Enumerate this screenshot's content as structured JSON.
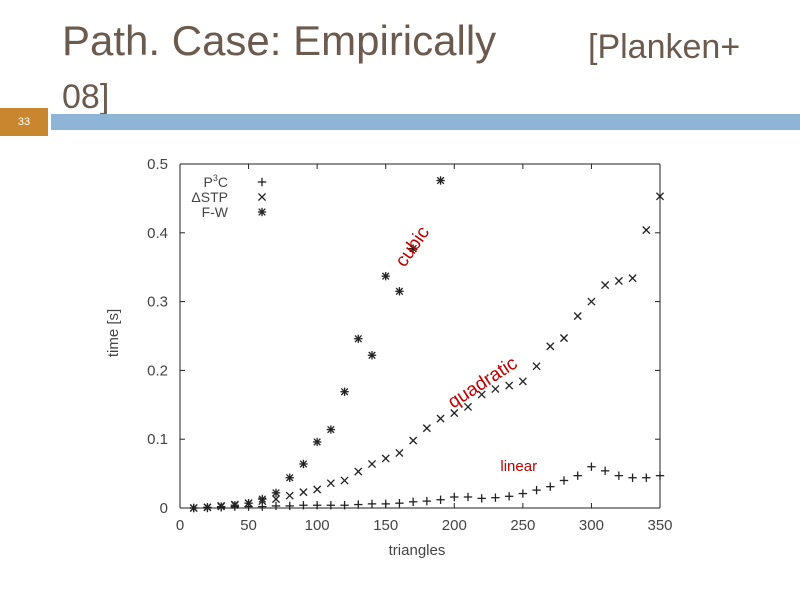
{
  "slide": {
    "title_line1": "Path. Case: Empirically",
    "title_bracket": "[Planken+",
    "title_line2": "08]",
    "number": "33"
  },
  "colors": {
    "band": "#8eb4d6",
    "badge": "#c8862f",
    "title": "#6b5b4e",
    "annotation": "#c00000"
  },
  "chart_data": {
    "type": "scatter",
    "xlabel": "triangles",
    "ylabel": "time [s]",
    "xlim": [
      0,
      350
    ],
    "ylim": [
      0,
      0.5
    ],
    "xticks": [
      0,
      50,
      100,
      150,
      200,
      250,
      300,
      350
    ],
    "yticks": [
      0,
      0.1,
      0.2,
      0.3,
      0.4,
      0.5
    ],
    "ytick_labels": [
      "0",
      "0.1",
      "0.2",
      "0.3",
      "0.4",
      "0.5"
    ],
    "legend_position": "top-left",
    "grid": false,
    "series": [
      {
        "name": "P3C",
        "label_base": "P",
        "label_sup": "3",
        "label_rest": "C",
        "marker": "plus",
        "points": [
          [
            10,
            0
          ],
          [
            20,
            0
          ],
          [
            30,
            0.001
          ],
          [
            40,
            0.002
          ],
          [
            50,
            0.002
          ],
          [
            60,
            0.002
          ],
          [
            70,
            0.003
          ],
          [
            80,
            0.003
          ],
          [
            90,
            0.004
          ],
          [
            100,
            0.004
          ],
          [
            110,
            0.004
          ],
          [
            120,
            0.004
          ],
          [
            130,
            0.005
          ],
          [
            140,
            0.006
          ],
          [
            150,
            0.006
          ],
          [
            160,
            0.007
          ],
          [
            170,
            0.009
          ],
          [
            180,
            0.01
          ],
          [
            190,
            0.012
          ],
          [
            200,
            0.016
          ],
          [
            210,
            0.016
          ],
          [
            220,
            0.014
          ],
          [
            230,
            0.015
          ],
          [
            240,
            0.017
          ],
          [
            250,
            0.021
          ],
          [
            260,
            0.026
          ],
          [
            270,
            0.031
          ],
          [
            280,
            0.04
          ],
          [
            290,
            0.047
          ],
          [
            300,
            0.06
          ],
          [
            310,
            0.054
          ],
          [
            320,
            0.047
          ],
          [
            330,
            0.044
          ],
          [
            340,
            0.044
          ],
          [
            350,
            0.047
          ]
        ]
      },
      {
        "name": "ΔSTP",
        "marker": "cross",
        "points": [
          [
            10,
            0
          ],
          [
            20,
            0.001
          ],
          [
            30,
            0.003
          ],
          [
            40,
            0.005
          ],
          [
            50,
            0.007
          ],
          [
            60,
            0.01
          ],
          [
            70,
            0.013
          ],
          [
            80,
            0.018
          ],
          [
            90,
            0.023
          ],
          [
            100,
            0.027
          ],
          [
            110,
            0.036
          ],
          [
            120,
            0.04
          ],
          [
            130,
            0.053
          ],
          [
            140,
            0.064
          ],
          [
            150,
            0.072
          ],
          [
            160,
            0.08
          ],
          [
            170,
            0.098
          ],
          [
            180,
            0.116
          ],
          [
            190,
            0.13
          ],
          [
            200,
            0.138
          ],
          [
            210,
            0.147
          ],
          [
            220,
            0.165
          ],
          [
            230,
            0.173
          ],
          [
            240,
            0.178
          ],
          [
            250,
            0.184
          ],
          [
            260,
            0.206
          ],
          [
            270,
            0.235
          ],
          [
            280,
            0.247
          ],
          [
            290,
            0.279
          ],
          [
            300,
            0.3
          ],
          [
            310,
            0.324
          ],
          [
            320,
            0.33
          ],
          [
            330,
            0.334
          ],
          [
            340,
            0.404
          ],
          [
            350,
            0.453
          ]
        ]
      },
      {
        "name": "F-W",
        "marker": "star",
        "points": [
          [
            10,
            0
          ],
          [
            20,
            0.001
          ],
          [
            30,
            0.002
          ],
          [
            40,
            0.004
          ],
          [
            50,
            0.007
          ],
          [
            60,
            0.013
          ],
          [
            70,
            0.022
          ],
          [
            80,
            0.044
          ],
          [
            90,
            0.064
          ],
          [
            100,
            0.096
          ],
          [
            110,
            0.114
          ],
          [
            120,
            0.169
          ],
          [
            130,
            0.246
          ],
          [
            140,
            0.222
          ],
          [
            150,
            0.337
          ],
          [
            160,
            0.315
          ],
          [
            170,
            0.377
          ],
          [
            190,
            0.476
          ]
        ]
      }
    ],
    "annotations": [
      {
        "text": "cubic",
        "x": 173,
        "y": 0.375,
        "rotate": -55
      },
      {
        "text": "quadratic",
        "x": 223,
        "y": 0.175,
        "rotate": -33
      },
      {
        "text": "linear",
        "x": 247,
        "y": 0.054,
        "rotate": 0
      }
    ]
  }
}
